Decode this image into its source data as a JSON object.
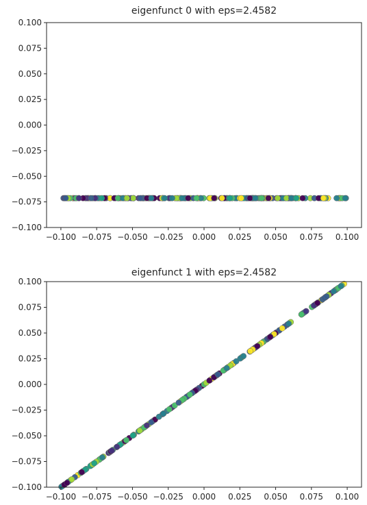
{
  "chart_data": [
    {
      "type": "scatter",
      "title": "eigenfunct 0 with eps=2.4582",
      "xlabel": "",
      "ylabel": "",
      "xlim": [
        -0.1,
        0.1
      ],
      "ylim": [
        -0.1,
        0.1
      ],
      "x_ticks": [
        "−0.100",
        "−0.075",
        "−0.050",
        "−0.025",
        "0.000",
        "0.025",
        "0.050",
        "0.075",
        "0.100"
      ],
      "y_ticks": [
        "0.100",
        "0.075",
        "0.050",
        "0.025",
        "0.000",
        "−0.025",
        "−0.050",
        "−0.075",
        "−0.100"
      ],
      "x_tick_values": [
        -0.1,
        -0.075,
        -0.05,
        -0.025,
        0.0,
        0.025,
        0.05,
        0.075,
        0.1
      ],
      "y_tick_values": [
        0.1,
        0.075,
        0.05,
        0.025,
        0.0,
        -0.025,
        -0.05,
        -0.075,
        -0.1
      ],
      "relation": "constant",
      "constant_y": -0.0714,
      "x_range": [
        -0.1,
        0.1
      ],
      "colormap": "viridis",
      "grid": false,
      "legend": "none"
    },
    {
      "type": "scatter",
      "title": "eigenfunct 1 with eps=2.4582",
      "xlabel": "",
      "ylabel": "",
      "xlim": [
        -0.1,
        0.1
      ],
      "ylim": [
        -0.1,
        0.1
      ],
      "x_ticks": [
        "−0.100",
        "−0.075",
        "−0.050",
        "−0.025",
        "0.000",
        "0.025",
        "0.050",
        "0.075",
        "0.100"
      ],
      "y_ticks": [
        "0.100",
        "0.075",
        "0.050",
        "0.025",
        "0.000",
        "−0.025",
        "−0.050",
        "−0.075",
        "−0.100"
      ],
      "x_tick_values": [
        -0.1,
        -0.075,
        -0.05,
        -0.025,
        0.0,
        0.025,
        0.05,
        0.075,
        0.1
      ],
      "y_tick_values": [
        0.1,
        0.075,
        0.05,
        0.025,
        0.0,
        -0.025,
        -0.05,
        -0.075,
        -0.1
      ],
      "relation": "identity",
      "x_range": [
        -0.1,
        0.1
      ],
      "colormap": "viridis",
      "grid": false,
      "legend": "none"
    }
  ],
  "colors": {
    "viridis": [
      "#440154",
      "#46327e",
      "#365c8d",
      "#277f8e",
      "#1fa187",
      "#4ac16d",
      "#a0da39",
      "#fde725"
    ],
    "axis": "#262626",
    "background": "#ffffff"
  }
}
